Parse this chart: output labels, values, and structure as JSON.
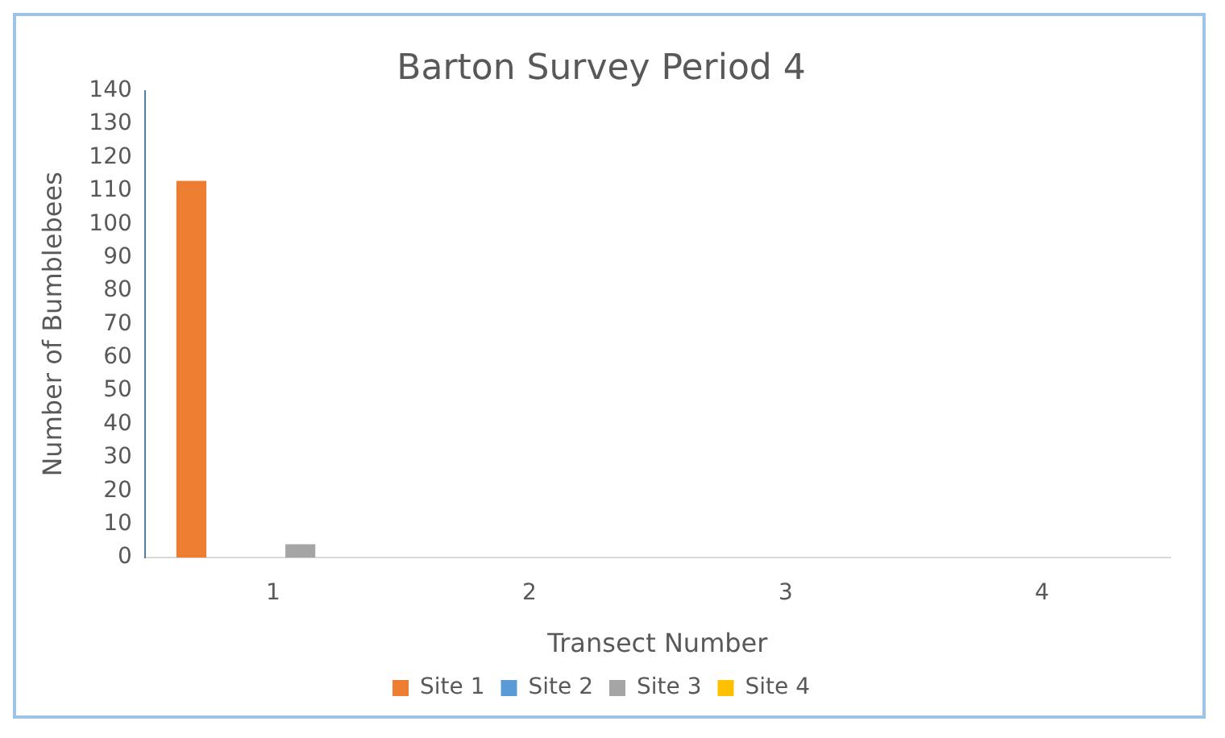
{
  "chart_data": {
    "type": "bar",
    "title": "Barton Survey Period 4",
    "xlabel": "Transect Number",
    "ylabel": "Number of Bumblebees",
    "categories": [
      "1",
      "2",
      "3",
      "4"
    ],
    "series": [
      {
        "name": "Site 1",
        "color": "#ed7d31",
        "values": [
          113,
          0,
          0,
          0
        ]
      },
      {
        "name": "Site 2",
        "color": "#5b9bd5",
        "values": [
          0,
          0,
          0,
          0
        ]
      },
      {
        "name": "Site 3",
        "color": "#a5a5a5",
        "values": [
          4,
          0,
          0,
          0
        ]
      },
      {
        "name": "Site 4",
        "color": "#ffc000",
        "values": [
          0,
          0,
          0,
          0
        ]
      }
    ],
    "ylim": [
      0,
      140
    ],
    "yticks": [
      0,
      10,
      20,
      30,
      40,
      50,
      60,
      70,
      80,
      90,
      100,
      110,
      120,
      130,
      140
    ],
    "grid": false,
    "legend": "bottom"
  }
}
